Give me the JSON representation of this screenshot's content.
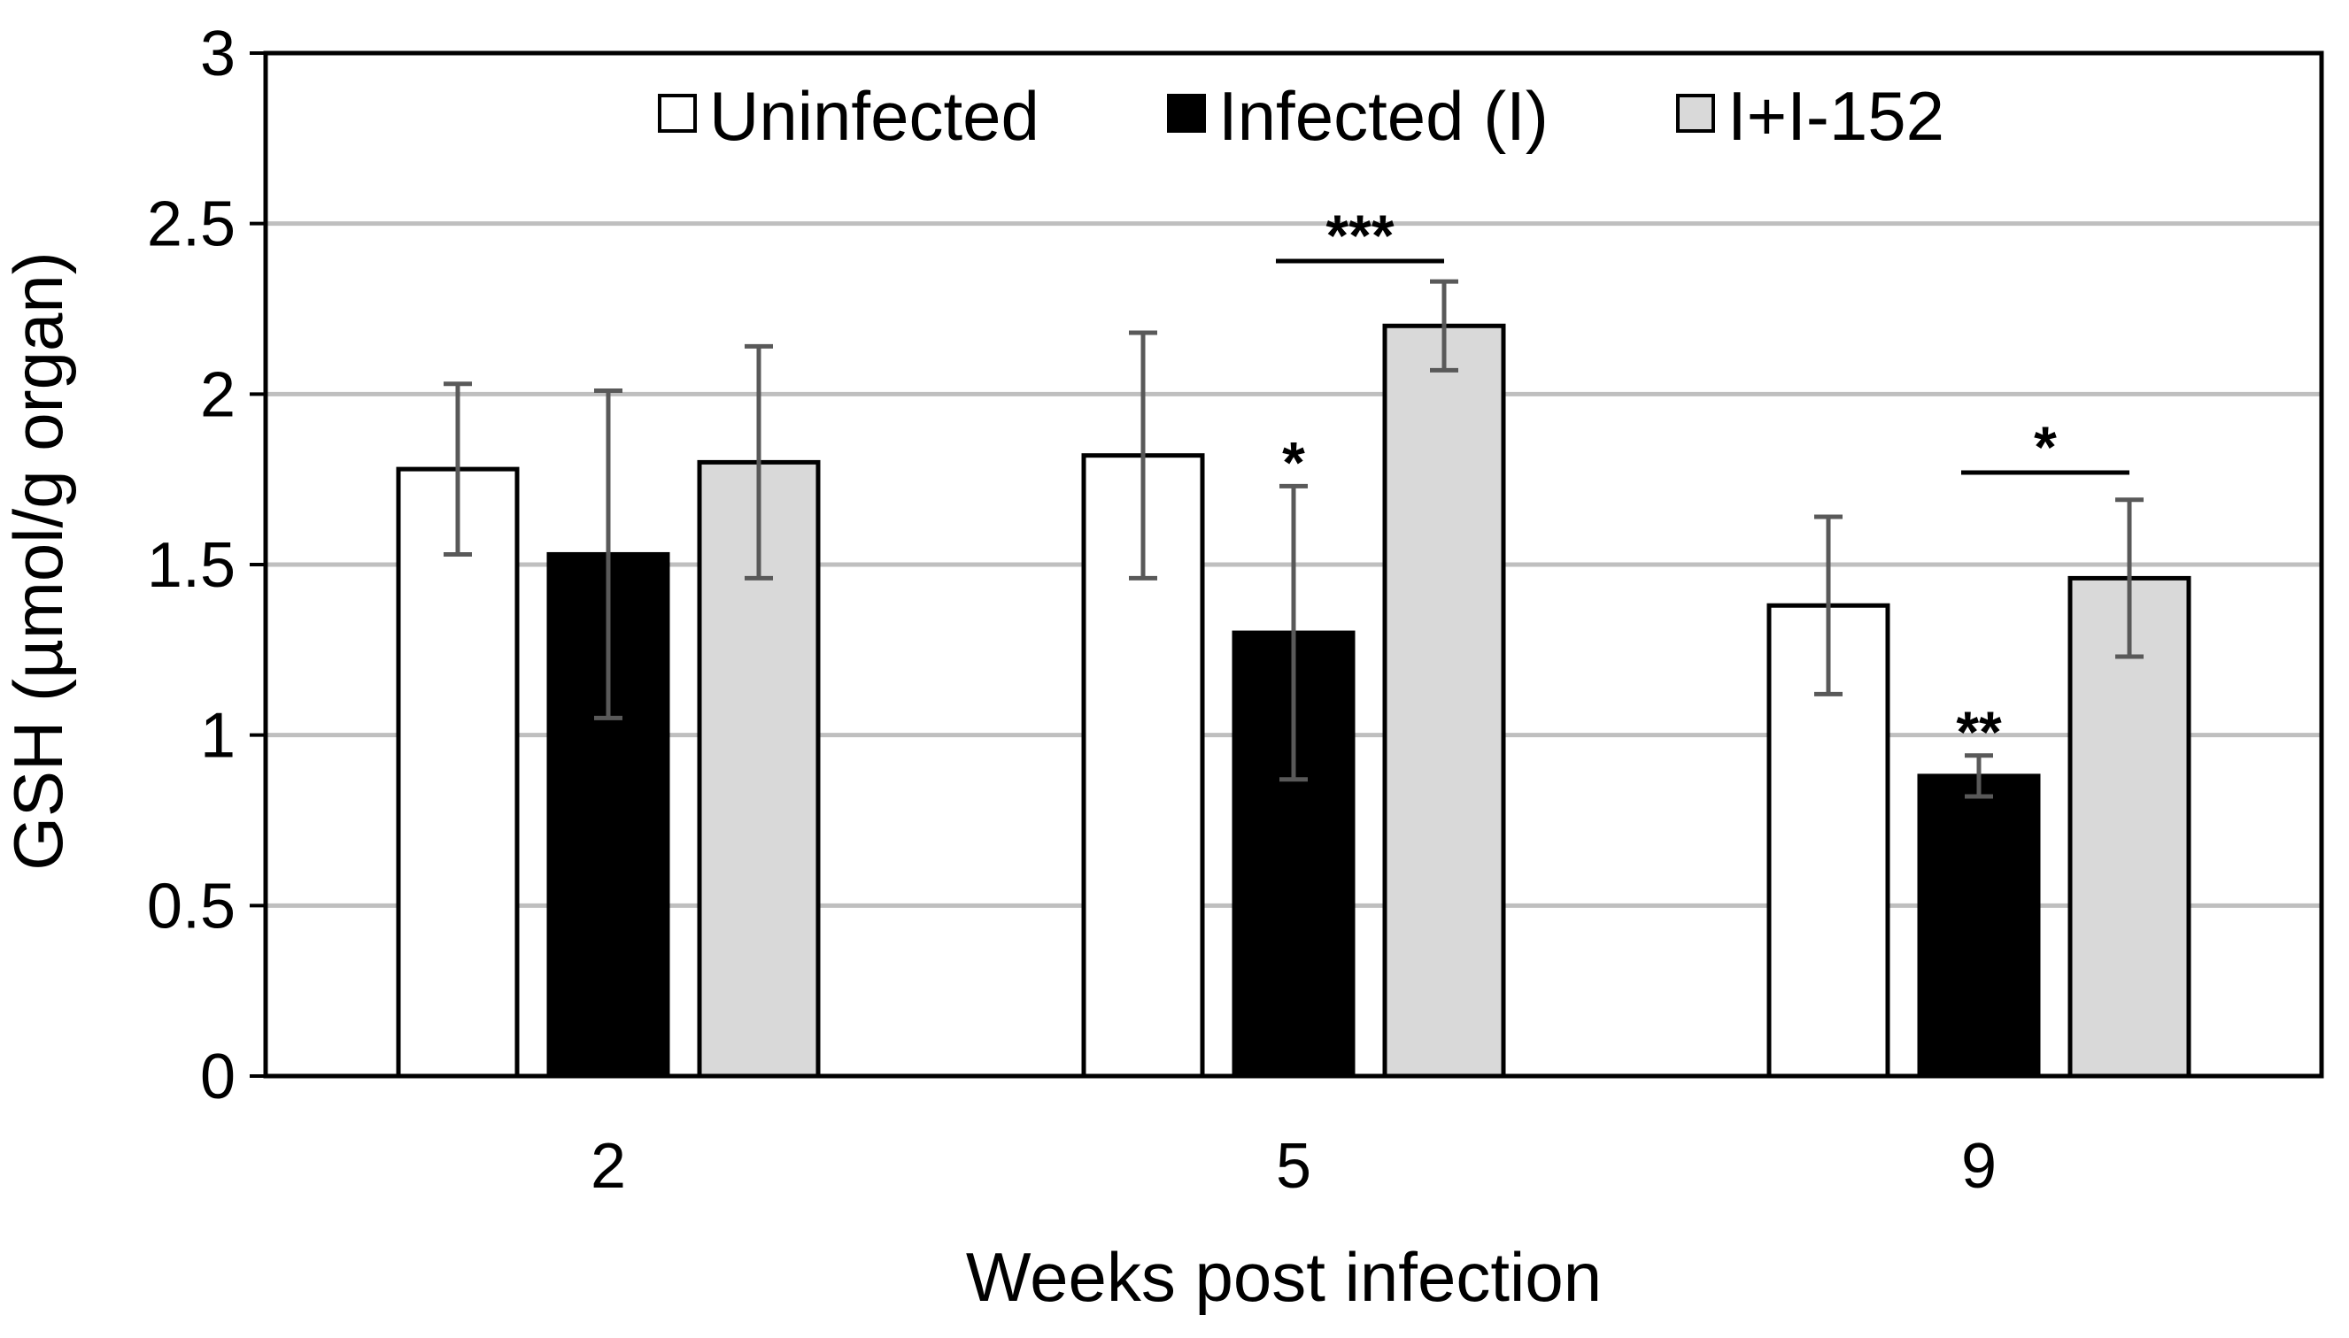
{
  "chart_data": {
    "type": "bar",
    "title": "",
    "xlabel": "Weeks post infection",
    "ylabel": "GSH (µmol/g organ)",
    "ylim": [
      0,
      3
    ],
    "yticks": [
      0,
      0.5,
      1,
      1.5,
      2,
      2.5,
      3
    ],
    "ytick_labels": [
      "0",
      "0.5",
      "1",
      "1.5",
      "2",
      "2.5",
      "3"
    ],
    "grid": true,
    "legend_position": "top",
    "categories": [
      "2",
      "5",
      "9"
    ],
    "series": [
      {
        "name": "Uninfected",
        "color": "#ffffff",
        "values": [
          1.78,
          1.82,
          1.38
        ],
        "errors": [
          0.25,
          0.36,
          0.26
        ]
      },
      {
        "name": "Infected (I)",
        "color": "#000000",
        "values": [
          1.53,
          1.3,
          0.88
        ],
        "errors": [
          0.48,
          0.43,
          0.06
        ]
      },
      {
        "name": "I+I-152",
        "color": "#d9d9d9",
        "values": [
          1.8,
          2.2,
          1.46
        ],
        "errors": [
          0.34,
          0.13,
          0.23
        ]
      }
    ],
    "annotations": [
      {
        "label": "***",
        "category": 1,
        "type": "bracket",
        "from_series": 1,
        "to_series": 2,
        "y": 2.39
      },
      {
        "label": "*",
        "category": 1,
        "type": "bar",
        "series": 1
      },
      {
        "label": "*",
        "category": 2,
        "type": "bracket",
        "from_series": 1,
        "to_series": 2,
        "y": 1.77
      },
      {
        "label": "**",
        "category": 2,
        "type": "bar",
        "series": 1
      }
    ],
    "colors": {
      "axis": "#000000",
      "grid": "#bfbfbf",
      "error_bar": "#595959"
    }
  }
}
